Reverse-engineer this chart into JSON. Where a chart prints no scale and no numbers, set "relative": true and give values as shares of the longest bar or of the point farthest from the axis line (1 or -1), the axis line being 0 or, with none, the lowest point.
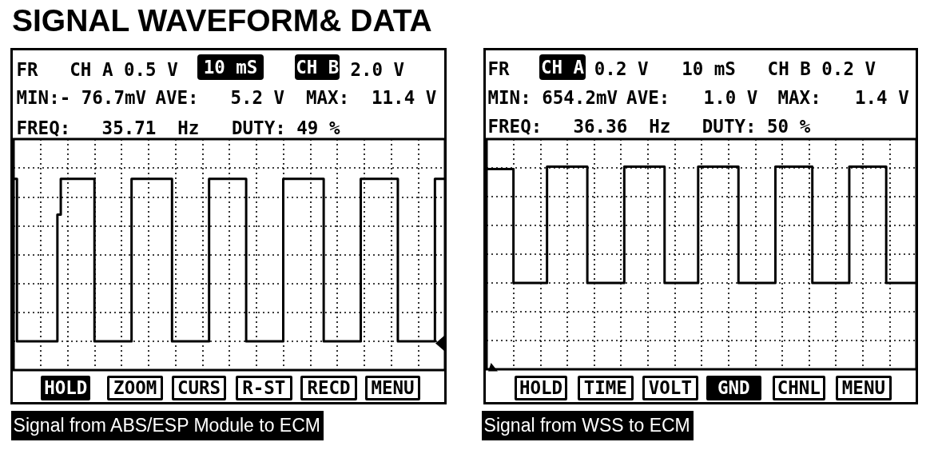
{
  "chart_data": [
    {
      "type": "step",
      "title": "SIGNAL WAVEFORM& DATA",
      "relative": true,
      "grid": true,
      "color": "#000000",
      "categories": [
        null,
        null,
        null,
        null,
        null,
        null,
        null,
        null,
        null,
        null,
        null,
        null,
        null,
        null,
        null,
        null,
        null,
        null,
        null,
        null,
        null,
        null,
        null,
        null,
        null,
        null,
        null,
        null,
        null,
        null,
        null,
        null,
        null,
        null,
        null,
        null,
        null,
        null,
        null,
        null,
        null,
        null,
        null,
        null,
        null,
        null,
        null,
        null,
        null,
        null,
        null,
        null,
        null,
        null,
        null,
        null,
        null,
        null,
        null,
        null,
        null,
        null,
        null,
        null,
        null,
        null,
        null,
        null,
        null,
        null,
        null,
        null,
        null,
        null,
        null,
        null,
        null,
        null,
        null,
        null,
        null,
        null,
        null,
        null,
        null,
        null,
        null,
        null,
        null,
        null,
        null,
        null,
        null,
        null,
        null,
        null,
        null,
        null,
        null,
        null,
        null,
        null,
        null,
        null,
        null,
        null,
        null,
        null,
        null,
        null,
        null,
        null,
        null,
        null,
        null,
        null,
        null,
        null,
        null,
        null,
        null,
        null,
        null,
        null,
        null,
        null,
        null,
        null,
        null
      ],
      "values": [
        1,
        0,
        0,
        0,
        0,
        0,
        0,
        0,
        0,
        0,
        0,
        0,
        0,
        0.78,
        1,
        1,
        1,
        1,
        1,
        1,
        1,
        1,
        1,
        1,
        0,
        0,
        0,
        0,
        0,
        0,
        0,
        0,
        0,
        0,
        0,
        1,
        1,
        1,
        1,
        1,
        1,
        1,
        1,
        1,
        1,
        1,
        1,
        0,
        0,
        0,
        0,
        0,
        0,
        0,
        0,
        0,
        0,
        0,
        1,
        1,
        1,
        1,
        1,
        1,
        1,
        1,
        1,
        1,
        1,
        0,
        0,
        0,
        0,
        0,
        0,
        0,
        0,
        0,
        0,
        0,
        1,
        1,
        1,
        1,
        1,
        1,
        1,
        1,
        1,
        1,
        1,
        1,
        0,
        0,
        0,
        0,
        0,
        0,
        0,
        0,
        0,
        0,
        0,
        1,
        1,
        1,
        1,
        1,
        1,
        1,
        1,
        1,
        1,
        1,
        0,
        0,
        0,
        0,
        0,
        0,
        0,
        0,
        0,
        0,
        0,
        1,
        1,
        1,
        1
      ],
      "annotations": [
        "FR",
        "CH A 0.5 V",
        "10 mS",
        "CH B",
        "2.0 V",
        "MIN:- 76.7mV",
        "AVE:",
        "5.2 V",
        "MAX:",
        "11.4 V",
        "FREQ:",
        "35.71",
        "Hz",
        "DUTY: 49 %",
        "HOLD",
        "ZOOM",
        "CURS",
        "R-ST",
        "RECD",
        "MENU",
        "Signal from ABS/ESP Module to ECM"
      ]
    },
    {
      "type": "step",
      "relative": true,
      "grid": true,
      "color": "#000000",
      "categories": [
        null,
        null,
        null,
        null,
        null,
        null,
        null,
        null,
        null,
        null,
        null,
        null,
        null,
        null,
        null,
        null,
        null,
        null,
        null,
        null,
        null,
        null,
        null,
        null,
        null,
        null,
        null,
        null,
        null,
        null,
        null,
        null,
        null,
        null,
        null,
        null,
        null,
        null,
        null,
        null,
        null,
        null,
        null,
        null,
        null,
        null,
        null,
        null,
        null,
        null,
        null,
        null,
        null,
        null,
        null,
        null,
        null,
        null,
        null,
        null,
        null,
        null,
        null,
        null,
        null,
        null,
        null,
        null,
        null,
        null,
        null,
        null,
        null,
        null,
        null,
        null,
        null,
        null,
        null,
        null,
        null,
        null,
        null,
        null,
        null,
        null,
        null,
        null,
        null,
        null,
        null,
        null,
        null,
        null,
        null,
        null,
        null,
        null,
        null,
        null,
        null,
        null,
        null,
        null,
        null,
        null,
        null,
        null,
        null,
        null,
        null,
        null,
        null,
        null,
        null,
        null,
        null,
        null,
        null,
        null,
        null,
        null,
        null,
        null,
        null,
        null,
        null,
        null,
        null
      ],
      "values": [
        0.98,
        0.98,
        0.98,
        0.98,
        0.98,
        0.98,
        0.98,
        0.98,
        0,
        0,
        0,
        0,
        0,
        0,
        0,
        0,
        0,
        0,
        1,
        1,
        1,
        1,
        1,
        1,
        1,
        1,
        1,
        1,
        1,
        1,
        0,
        0,
        0,
        0,
        0,
        0,
        0,
        0,
        0,
        0,
        0,
        1,
        1,
        1,
        1,
        1,
        1,
        1,
        1,
        1,
        1,
        1,
        1,
        0,
        0,
        0,
        0,
        0,
        0,
        0,
        0,
        0,
        0,
        1,
        1,
        1,
        1,
        1,
        1,
        1,
        1,
        1,
        1,
        1,
        1,
        0,
        0,
        0,
        0,
        0,
        0,
        0,
        0,
        0,
        0,
        0,
        1,
        1,
        1,
        1,
        1,
        1,
        1,
        1,
        1,
        1,
        1,
        0,
        0,
        0,
        0,
        0,
        0,
        0,
        0,
        0,
        0,
        0,
        1,
        1,
        1,
        1,
        1,
        1,
        1,
        1,
        1,
        1,
        1,
        0,
        0,
        0,
        0,
        0,
        0,
        0,
        0,
        0,
        0
      ],
      "annotations": [
        "FR",
        "CH A",
        "0.2 V",
        "10 mS",
        "CH B 0.2 V",
        "MIN: 654.2mV",
        "AVE:",
        "1.0 V",
        "MAX:",
        "1.4 V",
        "FREQ:",
        "36.36",
        "Hz",
        "DUTY: 50 %",
        "HOLD",
        "TIME",
        "VOLT",
        "GND",
        "CHNL",
        "MENU",
        "Signal from WSS to ECM"
      ]
    }
  ]
}
